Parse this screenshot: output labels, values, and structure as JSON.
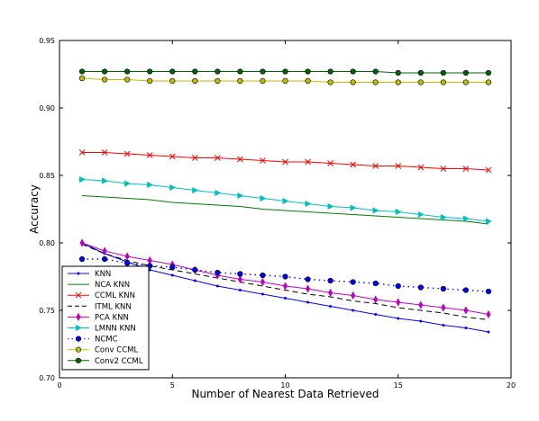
{
  "chart_data": {
    "type": "line",
    "xlabel": "Number of Nearest Data Retrieved",
    "ylabel": "Accuracy",
    "xlim": [
      0,
      20
    ],
    "ylim": [
      0.7,
      0.95
    ],
    "xticks": [
      0,
      5,
      10,
      15,
      20
    ],
    "yticks": [
      0.7,
      0.75,
      0.8,
      0.85,
      0.9,
      0.95
    ],
    "xtick_labels": [
      "0",
      "5",
      "10",
      "15",
      "20"
    ],
    "ytick_labels": [
      "0.70",
      "0.75",
      "0.80",
      "0.85",
      "0.90",
      "0.95"
    ],
    "grid": false,
    "legend_position": "lower-left",
    "x": [
      1,
      2,
      3,
      4,
      5,
      6,
      7,
      8,
      9,
      10,
      11,
      12,
      13,
      14,
      15,
      16,
      17,
      18,
      19
    ],
    "series": [
      {
        "name": "KNN",
        "color": "#0000ff",
        "linestyle": "solid",
        "marker": "point",
        "values": [
          0.8,
          0.792,
          0.786,
          0.78,
          0.776,
          0.772,
          0.768,
          0.765,
          0.762,
          0.759,
          0.756,
          0.753,
          0.75,
          0.747,
          0.744,
          0.742,
          0.739,
          0.737,
          0.734
        ]
      },
      {
        "name": "NCA KNN",
        "color": "#008000",
        "linestyle": "solid",
        "marker": "none",
        "values": [
          0.835,
          0.834,
          0.833,
          0.832,
          0.83,
          0.829,
          0.828,
          0.827,
          0.825,
          0.824,
          0.823,
          0.822,
          0.821,
          0.82,
          0.819,
          0.818,
          0.817,
          0.816,
          0.814
        ]
      },
      {
        "name": "CCML KNN",
        "color": "#ff0000",
        "linestyle": "solid",
        "marker": "x",
        "values": [
          0.867,
          0.867,
          0.866,
          0.865,
          0.864,
          0.863,
          0.863,
          0.862,
          0.861,
          0.86,
          0.86,
          0.859,
          0.858,
          0.857,
          0.857,
          0.856,
          0.855,
          0.855,
          0.854
        ]
      },
      {
        "name": "ITML KNN",
        "color": "#000000",
        "linestyle": "dashed",
        "marker": "none",
        "values": [
          0.799,
          0.792,
          0.787,
          0.783,
          0.78,
          0.777,
          0.774,
          0.771,
          0.768,
          0.765,
          0.762,
          0.76,
          0.757,
          0.755,
          0.752,
          0.75,
          0.748,
          0.745,
          0.743
        ]
      },
      {
        "name": "PCA KNN",
        "color": "#bf00bf",
        "linestyle": "solid",
        "marker": "thin_diamond",
        "values": [
          0.8,
          0.794,
          0.79,
          0.787,
          0.784,
          0.78,
          0.776,
          0.773,
          0.771,
          0.768,
          0.766,
          0.763,
          0.761,
          0.758,
          0.756,
          0.754,
          0.752,
          0.75,
          0.747
        ]
      },
      {
        "name": "LMNN KNN",
        "color": "#00bfbf",
        "linestyle": "solid",
        "marker": "triangle_right",
        "values": [
          0.847,
          0.846,
          0.844,
          0.843,
          0.841,
          0.839,
          0.837,
          0.835,
          0.833,
          0.831,
          0.829,
          0.827,
          0.826,
          0.824,
          0.823,
          0.821,
          0.819,
          0.818,
          0.816
        ]
      },
      {
        "name": "NCMC",
        "color": "#0000ff",
        "linestyle": "dotted",
        "marker": "circle",
        "values": [
          0.788,
          0.788,
          0.785,
          0.783,
          0.782,
          0.78,
          0.778,
          0.777,
          0.776,
          0.775,
          0.773,
          0.772,
          0.771,
          0.77,
          0.768,
          0.767,
          0.766,
          0.765,
          0.764
        ]
      },
      {
        "name": "Conv CCML",
        "color": "#bfbf00",
        "linestyle": "solid",
        "marker": "circle",
        "values": [
          0.922,
          0.921,
          0.921,
          0.92,
          0.92,
          0.92,
          0.92,
          0.92,
          0.92,
          0.92,
          0.92,
          0.919,
          0.919,
          0.919,
          0.919,
          0.919,
          0.919,
          0.919,
          0.919
        ]
      },
      {
        "name": "Conv2 CCML",
        "color": "#006400",
        "linestyle": "solid",
        "marker": "circle",
        "values": [
          0.927,
          0.927,
          0.927,
          0.927,
          0.927,
          0.927,
          0.927,
          0.927,
          0.927,
          0.927,
          0.927,
          0.927,
          0.927,
          0.927,
          0.926,
          0.926,
          0.926,
          0.926,
          0.926
        ]
      }
    ]
  }
}
